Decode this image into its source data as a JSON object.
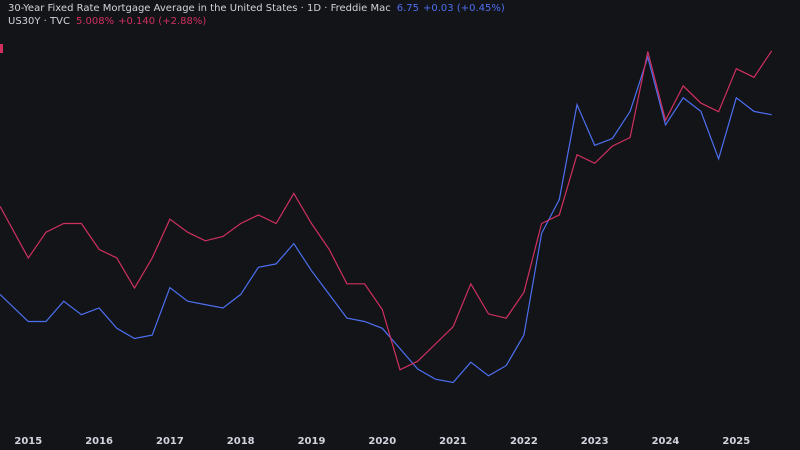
{
  "chart_data": {
    "type": "line",
    "xlim": [
      2014.6,
      2025.9
    ],
    "xticks": [
      2015,
      2016,
      2017,
      2018,
      2019,
      2020,
      2021,
      2022,
      2023,
      2024,
      2025
    ],
    "ylim": [
      2.1,
      8.0
    ],
    "y2lim": [
      0.6,
      5.25
    ],
    "grid": false,
    "x": [
      2014.6,
      2015.0,
      2015.25,
      2015.5,
      2015.75,
      2016.0,
      2016.25,
      2016.5,
      2016.75,
      2017.0,
      2017.25,
      2017.5,
      2017.75,
      2018.0,
      2018.25,
      2018.5,
      2018.75,
      2019.0,
      2019.25,
      2019.5,
      2019.75,
      2020.0,
      2020.25,
      2020.5,
      2020.75,
      2021.0,
      2021.25,
      2021.5,
      2021.75,
      2022.0,
      2022.25,
      2022.5,
      2022.75,
      2023.0,
      2023.25,
      2023.5,
      2023.75,
      2024.0,
      2024.25,
      2024.5,
      2024.75,
      2025.0,
      2025.25,
      2025.5
    ],
    "series": [
      {
        "name": "30-Year Fixed Rate Mortgage Average in the United States · 1D · Freddie Mac",
        "last": "6.75",
        "change": "+0.03 (+0.45%)",
        "color": "#4c6ff0",
        "values": [
          4.1,
          3.7,
          3.7,
          4.0,
          3.8,
          3.9,
          3.6,
          3.45,
          3.5,
          4.2,
          4.0,
          3.95,
          3.9,
          4.1,
          4.5,
          4.55,
          4.85,
          4.45,
          4.1,
          3.75,
          3.7,
          3.6,
          3.3,
          3.0,
          2.85,
          2.8,
          3.1,
          2.9,
          3.05,
          3.5,
          5.0,
          5.5,
          6.9,
          6.3,
          6.4,
          6.8,
          7.6,
          6.6,
          7.0,
          6.8,
          6.1,
          7.0,
          6.8,
          6.75
        ]
      },
      {
        "name": "US30Y · TVC",
        "last": "5.008%",
        "change": "+0.140 (+2.88%)",
        "color": "#d0305f",
        "axis": "y2",
        "values": [
          3.2,
          2.6,
          2.9,
          3.0,
          3.0,
          2.7,
          2.6,
          2.25,
          2.6,
          3.05,
          2.9,
          2.8,
          2.85,
          3.0,
          3.1,
          3.0,
          3.35,
          3.0,
          2.7,
          2.3,
          2.3,
          2.0,
          1.3,
          1.4,
          1.6,
          1.8,
          2.3,
          1.95,
          1.9,
          2.2,
          3.0,
          3.1,
          3.8,
          3.7,
          3.9,
          4.0,
          5.0,
          4.2,
          4.6,
          4.4,
          4.3,
          4.8,
          4.7,
          5.008
        ]
      }
    ]
  }
}
